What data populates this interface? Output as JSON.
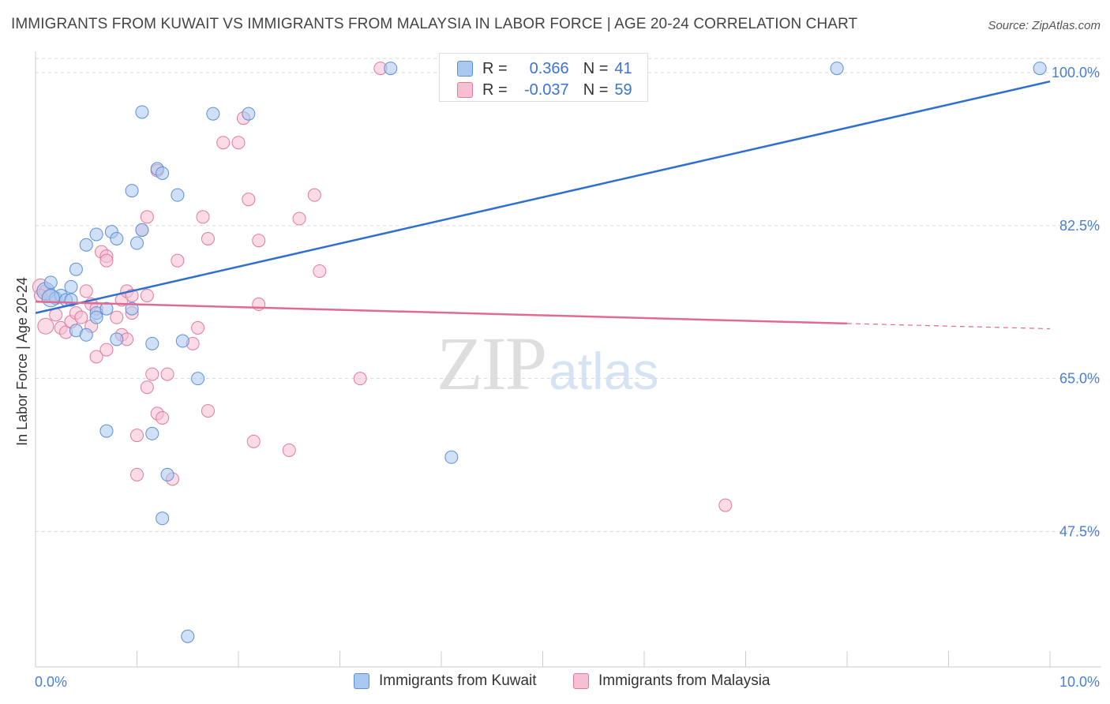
{
  "title": "IMMIGRANTS FROM KUWAIT VS IMMIGRANTS FROM MALAYSIA IN LABOR FORCE | AGE 20-24 CORRELATION CHART",
  "source": "Source: ZipAtlas.com",
  "watermark": {
    "zip": "ZIP",
    "atlas": "atlas"
  },
  "legend": {
    "rows": [
      {
        "r_label": "R =",
        "r_value": "0.366",
        "n_label": "N =",
        "n_value": "41"
      },
      {
        "r_label": "R =",
        "r_value": "-0.037",
        "n_label": "N =",
        "n_value": "59"
      }
    ]
  },
  "bottom_legend": {
    "kuwait": "Immigrants from Kuwait",
    "malaysia": "Immigrants from Malaysia"
  },
  "colors": {
    "kuwait_fill": "#a9c8f0",
    "kuwait_stroke": "#5b8fd8",
    "kuwait_line": "#2f6fcf",
    "malaysia_fill": "#f7c0d2",
    "malaysia_stroke": "#e07aa0",
    "malaysia_line": "#e06a94",
    "axis_text": "#4a7fd0",
    "grid": "#d8d8d8"
  },
  "chart_data": {
    "type": "scatter",
    "title": "IMMIGRANTS FROM KUWAIT VS IMMIGRANTS FROM MALAYSIA IN LABOR FORCE | AGE 20-24 CORRELATION CHART",
    "xlabel": "",
    "ylabel": "In Labor Force | Age 20-24",
    "xlim": [
      0,
      10
    ],
    "ylim": [
      32,
      102
    ],
    "x_tick_labels": [
      "0.0%",
      "10.0%"
    ],
    "y_ticks": [
      47.5,
      65.0,
      82.5,
      100.0
    ],
    "y_tick_labels": [
      "47.5%",
      "65.0%",
      "82.5%",
      "100.0%"
    ],
    "grid": true,
    "legend_position": "top-center",
    "series": [
      {
        "name": "Immigrants from Kuwait",
        "points": [
          [
            0.1,
            75.0
          ],
          [
            0.15,
            76.0
          ],
          [
            0.2,
            74.2
          ],
          [
            0.25,
            74.5
          ],
          [
            0.3,
            74.0
          ],
          [
            0.35,
            75.5
          ],
          [
            0.4,
            77.5
          ],
          [
            0.4,
            70.5
          ],
          [
            0.5,
            80.3
          ],
          [
            0.5,
            70.0
          ],
          [
            0.6,
            81.5
          ],
          [
            0.6,
            72.5
          ],
          [
            0.7,
            73.0
          ],
          [
            0.75,
            81.8
          ],
          [
            0.8,
            81.0
          ],
          [
            0.8,
            69.5
          ],
          [
            0.95,
            86.5
          ],
          [
            0.95,
            73.0
          ],
          [
            1.0,
            80.5
          ],
          [
            1.05,
            82.0
          ],
          [
            1.05,
            95.5
          ],
          [
            1.15,
            69.0
          ],
          [
            1.2,
            89.0
          ],
          [
            1.25,
            88.5
          ],
          [
            1.4,
            86.0
          ],
          [
            1.45,
            69.3
          ],
          [
            1.6,
            65.0
          ],
          [
            1.75,
            95.3
          ],
          [
            2.1,
            95.3
          ],
          [
            3.5,
            100.5
          ],
          [
            7.9,
            100.5
          ],
          [
            9.9,
            100.5
          ],
          [
            0.7,
            59.0
          ],
          [
            1.15,
            58.7
          ],
          [
            4.1,
            56.0
          ],
          [
            1.3,
            54.0
          ],
          [
            1.25,
            49.0
          ],
          [
            1.5,
            35.5
          ],
          [
            0.6,
            72.0
          ],
          [
            0.35,
            74.0
          ],
          [
            0.15,
            74.2
          ]
        ],
        "trend": {
          "x": [
            0,
            10
          ],
          "y": [
            72.5,
            99.0
          ]
        }
      },
      {
        "name": "Immigrants from Malaysia",
        "points": [
          [
            0.05,
            75.5
          ],
          [
            0.1,
            75.0
          ],
          [
            0.15,
            74.5
          ],
          [
            0.2,
            72.3
          ],
          [
            0.25,
            70.8
          ],
          [
            0.3,
            70.3
          ],
          [
            0.35,
            71.5
          ],
          [
            0.4,
            72.5
          ],
          [
            0.45,
            72.0
          ],
          [
            0.5,
            75.0
          ],
          [
            0.55,
            73.5
          ],
          [
            0.55,
            71.0
          ],
          [
            0.6,
            67.5
          ],
          [
            0.6,
            73.0
          ],
          [
            0.65,
            79.5
          ],
          [
            0.7,
            79.0
          ],
          [
            0.7,
            78.5
          ],
          [
            0.7,
            68.3
          ],
          [
            0.8,
            72.0
          ],
          [
            0.85,
            74.0
          ],
          [
            0.85,
            70.0
          ],
          [
            0.9,
            69.5
          ],
          [
            0.9,
            75.0
          ],
          [
            0.95,
            74.5
          ],
          [
            0.95,
            72.5
          ],
          [
            1.0,
            58.5
          ],
          [
            1.0,
            54.0
          ],
          [
            1.1,
            83.5
          ],
          [
            1.05,
            82.0
          ],
          [
            1.1,
            74.5
          ],
          [
            1.1,
            64.0
          ],
          [
            1.15,
            65.5
          ],
          [
            1.2,
            61.0
          ],
          [
            1.2,
            88.8
          ],
          [
            1.25,
            60.5
          ],
          [
            1.3,
            65.5
          ],
          [
            1.35,
            53.5
          ],
          [
            1.4,
            78.5
          ],
          [
            1.55,
            69.0
          ],
          [
            1.6,
            70.8
          ],
          [
            1.65,
            83.5
          ],
          [
            1.7,
            81.0
          ],
          [
            1.7,
            61.3
          ],
          [
            1.85,
            92.0
          ],
          [
            2.0,
            92.0
          ],
          [
            2.05,
            94.8
          ],
          [
            2.1,
            85.5
          ],
          [
            2.15,
            57.8
          ],
          [
            2.2,
            80.8
          ],
          [
            2.2,
            73.5
          ],
          [
            2.5,
            56.8
          ],
          [
            2.6,
            83.3
          ],
          [
            2.75,
            86.0
          ],
          [
            2.8,
            77.3
          ],
          [
            3.2,
            65.0
          ],
          [
            3.4,
            100.5
          ],
          [
            6.8,
            50.5
          ],
          [
            0.1,
            71.0
          ],
          [
            0.05,
            74.5
          ]
        ],
        "trend": {
          "x": [
            0,
            8
          ],
          "y": [
            73.8,
            71.3
          ]
        },
        "trend_dashed": {
          "x": [
            8,
            10
          ],
          "y": [
            71.3,
            70.7
          ]
        }
      }
    ]
  }
}
